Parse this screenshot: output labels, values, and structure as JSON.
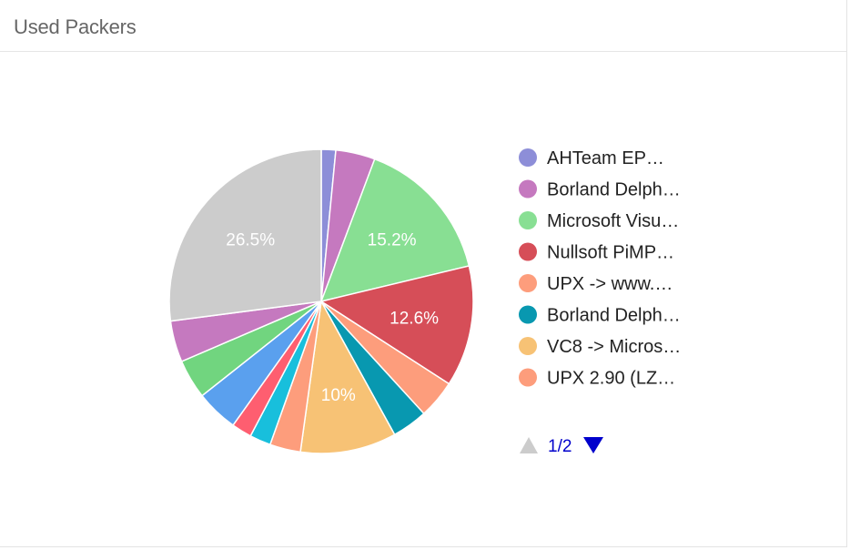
{
  "panel": {
    "title": "Used Packers"
  },
  "chart_data": {
    "type": "pie",
    "title": "Used Packers",
    "legend_position": "right",
    "legend_page": "1/2",
    "pager_up_icon": "triangle-up-icon",
    "pager_down_icon": "triangle-down-icon",
    "slices": [
      {
        "label": "AHTeam EP…",
        "value": 1.5,
        "color": "#8d8ed8",
        "show_label": false,
        "in_legend": true
      },
      {
        "label": "Borland Delph…",
        "value": 4.1,
        "color": "#c579bf",
        "show_label": false,
        "in_legend": true
      },
      {
        "label": "Microsoft Visu…",
        "value": 15.2,
        "color": "#88df93",
        "show_label": true,
        "in_legend": true
      },
      {
        "label": "Nullsoft PiMP…",
        "value": 12.6,
        "color": "#d64e58",
        "show_label": true,
        "in_legend": true
      },
      {
        "label": "UPX -> www.…",
        "value": 4.0,
        "color": "#fd9d7c",
        "show_label": false,
        "in_legend": true
      },
      {
        "label": "Borland Delph…",
        "value": 3.7,
        "color": "#0898b0",
        "show_label": false,
        "in_legend": true
      },
      {
        "label": "VC8 -> Micros…",
        "value": 10.0,
        "color": "#f7c275",
        "show_label": true,
        "in_legend": true
      },
      {
        "label": "UPX 2.90 (LZ…",
        "value": 3.2,
        "color": "#fd9d7c",
        "show_label": false,
        "in_legend": true
      },
      {
        "label": "",
        "value": 2.2,
        "color": "#18bfdc",
        "show_label": false,
        "in_legend": false
      },
      {
        "label": "",
        "value": 2.1,
        "color": "#fe5e70",
        "show_label": false,
        "in_legend": false
      },
      {
        "label": "",
        "value": 4.4,
        "color": "#5aa0ee",
        "show_label": false,
        "in_legend": false
      },
      {
        "label": "",
        "value": 4.1,
        "color": "#71d57f",
        "show_label": false,
        "in_legend": false
      },
      {
        "label": "",
        "value": 4.3,
        "color": "#c579bf",
        "show_label": false,
        "in_legend": false
      },
      {
        "label": "",
        "value": 26.5,
        "color": "#cccccc",
        "show_label": true,
        "in_legend": false
      }
    ],
    "pager_colors": {
      "up_disabled": "#cccccc",
      "down_active": "#0000cc",
      "text": "#0000cc"
    }
  }
}
